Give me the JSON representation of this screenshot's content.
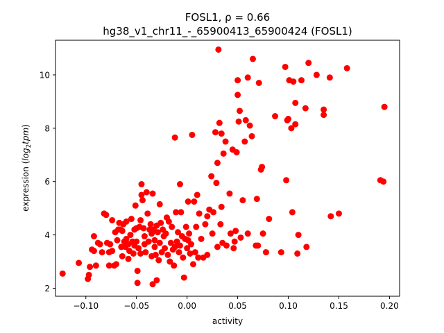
{
  "chart_data": {
    "type": "scatter",
    "title_line1": "FOSL1, ρ = 0.66",
    "title_line2": "hg38_v1_chr11_-_65900413_65900424 (FOSL1)",
    "xlabel": "activity",
    "ylabel_prefix": "expression (",
    "ylabel_math": "log",
    "ylabel_sub": "2",
    "ylabel_math2": "tpm",
    "ylabel_suffix": ")",
    "xlim": [
      -0.13,
      0.21
    ],
    "ylim": [
      1.7,
      11.3
    ],
    "xticks": [
      -0.1,
      -0.05,
      0.0,
      0.05,
      0.1,
      0.15,
      0.2
    ],
    "xtick_labels": [
      "−0.10",
      "−0.05",
      "0.00",
      "0.05",
      "0.10",
      "0.15",
      "0.20"
    ],
    "yticks": [
      2,
      4,
      6,
      8,
      10
    ],
    "ytick_labels": [
      "2",
      "4",
      "6",
      "8",
      "10"
    ],
    "grid": false,
    "legend": "none",
    "marker_color": "#ff0000",
    "series": [
      {
        "points": [
          [
            -0.123,
            2.55
          ],
          [
            -0.107,
            2.95
          ],
          [
            -0.098,
            2.35
          ],
          [
            -0.097,
            2.5
          ],
          [
            -0.096,
            2.8
          ],
          [
            -0.094,
            3.45
          ],
          [
            -0.092,
            3.4
          ],
          [
            -0.092,
            3.95
          ],
          [
            -0.09,
            2.85
          ],
          [
            -0.088,
            3.7
          ],
          [
            -0.086,
            3.65
          ],
          [
            -0.084,
            3.35
          ],
          [
            -0.082,
            4.8
          ],
          [
            -0.08,
            4.75
          ],
          [
            -0.079,
            3.7
          ],
          [
            -0.077,
            3.35
          ],
          [
            -0.077,
            2.85
          ],
          [
            -0.076,
            3.65
          ],
          [
            -0.074,
            3.4
          ],
          [
            -0.074,
            4.55
          ],
          [
            -0.072,
            2.85
          ],
          [
            -0.071,
            4.1
          ],
          [
            -0.07,
            2.9
          ],
          [
            -0.069,
            3.8
          ],
          [
            -0.068,
            4.2
          ],
          [
            -0.067,
            4.45
          ],
          [
            -0.066,
            4.2
          ],
          [
            -0.065,
            3.55
          ],
          [
            -0.064,
            3.2
          ],
          [
            -0.064,
            4.15
          ],
          [
            -0.063,
            4.4
          ],
          [
            -0.062,
            3.75
          ],
          [
            -0.061,
            3.55
          ],
          [
            -0.06,
            3.85
          ],
          [
            -0.06,
            4.5
          ],
          [
            -0.058,
            3.65
          ],
          [
            -0.058,
            3.1
          ],
          [
            -0.057,
            3.4
          ],
          [
            -0.056,
            4.0
          ],
          [
            -0.055,
            4.6
          ],
          [
            -0.054,
            3.75
          ],
          [
            -0.053,
            3.3
          ],
          [
            -0.052,
            4.2
          ],
          [
            -0.052,
            3.6
          ],
          [
            -0.051,
            5.1
          ],
          [
            -0.05,
            3.75
          ],
          [
            -0.05,
            4.25
          ],
          [
            -0.049,
            2.65
          ],
          [
            -0.049,
            2.2
          ],
          [
            -0.048,
            3.5
          ],
          [
            -0.047,
            4.3
          ],
          [
            -0.046,
            4.55
          ],
          [
            -0.046,
            3.3
          ],
          [
            -0.045,
            5.9
          ],
          [
            -0.045,
            5.5
          ],
          [
            -0.044,
            5.3
          ],
          [
            -0.043,
            4.25
          ],
          [
            -0.042,
            3.95
          ],
          [
            -0.042,
            3.65
          ],
          [
            -0.041,
            3.35
          ],
          [
            -0.04,
            5.6
          ],
          [
            -0.039,
            4.8
          ],
          [
            -0.038,
            3.75
          ],
          [
            -0.037,
            4.2
          ],
          [
            -0.036,
            4.4
          ],
          [
            -0.035,
            4.05
          ],
          [
            -0.035,
            3.2
          ],
          [
            -0.034,
            5.55
          ],
          [
            -0.034,
            2.15
          ],
          [
            -0.033,
            4.2
          ],
          [
            -0.032,
            3.8
          ],
          [
            -0.032,
            3.55
          ],
          [
            -0.031,
            3.25
          ],
          [
            -0.03,
            4.35
          ],
          [
            -0.03,
            2.3
          ],
          [
            -0.029,
            4.1
          ],
          [
            -0.028,
            3.05
          ],
          [
            -0.027,
            3.7
          ],
          [
            -0.027,
            5.15
          ],
          [
            -0.026,
            4.45
          ],
          [
            -0.025,
            3.35
          ],
          [
            -0.024,
            4.2
          ],
          [
            -0.023,
            3.95
          ],
          [
            -0.022,
            3.5
          ],
          [
            -0.021,
            4.05
          ],
          [
            -0.02,
            4.65
          ],
          [
            -0.019,
            3.25
          ],
          [
            -0.018,
            4.5
          ],
          [
            -0.017,
            3.0
          ],
          [
            -0.016,
            3.7
          ],
          [
            -0.015,
            4.3
          ],
          [
            -0.014,
            3.45
          ],
          [
            -0.013,
            2.85
          ],
          [
            -0.012,
            3.55
          ],
          [
            -0.012,
            7.65
          ],
          [
            -0.011,
            4.85
          ],
          [
            -0.01,
            3.75
          ],
          [
            -0.009,
            4.1
          ],
          [
            -0.008,
            3.35
          ],
          [
            -0.007,
            3.6
          ],
          [
            -0.007,
            5.9
          ],
          [
            -0.006,
            4.85
          ],
          [
            -0.005,
            3.95
          ],
          [
            -0.004,
            3.15
          ],
          [
            -0.003,
            2.4
          ],
          [
            -0.002,
            3.85
          ],
          [
            -0.001,
            4.3
          ],
          [
            0.0,
            3.5
          ],
          [
            0.001,
            3.8
          ],
          [
            0.001,
            5.25
          ],
          [
            0.002,
            4.05
          ],
          [
            0.003,
            3.3
          ],
          [
            0.004,
            3.65
          ],
          [
            0.005,
            7.75
          ],
          [
            0.006,
            2.9
          ],
          [
            0.007,
            5.25
          ],
          [
            0.008,
            3.35
          ],
          [
            0.009,
            4.3
          ],
          [
            0.01,
            5.5
          ],
          [
            0.011,
            3.15
          ],
          [
            0.012,
            4.8
          ],
          [
            0.014,
            3.85
          ],
          [
            0.016,
            3.15
          ],
          [
            0.018,
            4.4
          ],
          [
            0.02,
            4.7
          ],
          [
            0.02,
            3.25
          ],
          [
            0.022,
            4.95
          ],
          [
            0.024,
            6.2
          ],
          [
            0.025,
            4.05
          ],
          [
            0.026,
            4.85
          ],
          [
            0.028,
            7.85
          ],
          [
            0.029,
            5.95
          ],
          [
            0.03,
            6.7
          ],
          [
            0.03,
            3.55
          ],
          [
            0.031,
            10.95
          ],
          [
            0.032,
            8.2
          ],
          [
            0.033,
            4.4
          ],
          [
            0.034,
            5.05
          ],
          [
            0.034,
            7.8
          ],
          [
            0.035,
            3.7
          ],
          [
            0.036,
            7.05
          ],
          [
            0.038,
            7.5
          ],
          [
            0.039,
            3.6
          ],
          [
            0.042,
            5.55
          ],
          [
            0.043,
            4.05
          ],
          [
            0.045,
            7.2
          ],
          [
            0.046,
            3.5
          ],
          [
            0.047,
            3.75
          ],
          [
            0.048,
            4.15
          ],
          [
            0.049,
            7.1
          ],
          [
            0.05,
            9.8
          ],
          [
            0.05,
            9.25
          ],
          [
            0.051,
            8.25
          ],
          [
            0.052,
            8.65
          ],
          [
            0.053,
            3.9
          ],
          [
            0.055,
            5.3
          ],
          [
            0.057,
            7.5
          ],
          [
            0.058,
            8.3
          ],
          [
            0.06,
            9.9
          ],
          [
            0.06,
            4.05
          ],
          [
            0.062,
            8.1
          ],
          [
            0.064,
            7.7
          ],
          [
            0.065,
            10.6
          ],
          [
            0.068,
            3.6
          ],
          [
            0.069,
            5.35
          ],
          [
            0.07,
            3.6
          ],
          [
            0.071,
            9.7
          ],
          [
            0.073,
            6.45
          ],
          [
            0.074,
            6.55
          ],
          [
            0.075,
            4.05
          ],
          [
            0.078,
            3.35
          ],
          [
            0.081,
            4.6
          ],
          [
            0.087,
            8.45
          ],
          [
            0.093,
            3.35
          ],
          [
            0.097,
            10.3
          ],
          [
            0.098,
            6.05
          ],
          [
            0.099,
            8.3
          ],
          [
            0.1,
            8.35
          ],
          [
            0.101,
            9.8
          ],
          [
            0.103,
            8.0
          ],
          [
            0.104,
            4.85
          ],
          [
            0.105,
            9.75
          ],
          [
            0.107,
            8.15
          ],
          [
            0.107,
            8.95
          ],
          [
            0.109,
            3.3
          ],
          [
            0.11,
            4.0
          ],
          [
            0.113,
            9.8
          ],
          [
            0.117,
            8.75
          ],
          [
            0.118,
            3.55
          ],
          [
            0.12,
            10.45
          ],
          [
            0.128,
            10.0
          ],
          [
            0.135,
            8.7
          ],
          [
            0.135,
            8.5
          ],
          [
            0.141,
            9.9
          ],
          [
            0.142,
            4.7
          ],
          [
            0.15,
            4.8
          ],
          [
            0.158,
            10.25
          ],
          [
            0.191,
            6.05
          ],
          [
            0.194,
            6.0
          ],
          [
            0.195,
            8.8
          ]
        ]
      }
    ]
  }
}
